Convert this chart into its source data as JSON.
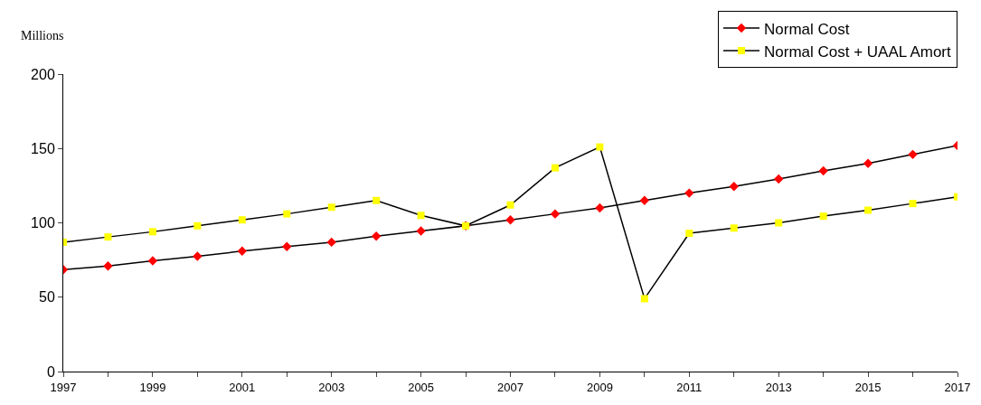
{
  "chart_data": {
    "type": "line",
    "ylabel": "Millions",
    "x": [
      1997,
      1998,
      1999,
      2000,
      2001,
      2002,
      2003,
      2004,
      2005,
      2006,
      2007,
      2008,
      2009,
      2010,
      2011,
      2012,
      2013,
      2014,
      2015,
      2016,
      2017
    ],
    "series": [
      {
        "name": "Normal Cost",
        "color": "#ff0000",
        "marker": "diamond",
        "values": [
          68.5,
          71,
          74.5,
          77.5,
          81,
          84,
          87,
          91,
          94.5,
          98,
          102,
          106,
          110,
          115,
          120,
          124.5,
          129.5,
          135,
          140,
          146,
          152
        ]
      },
      {
        "name": "Normal Cost + UAAL Amort",
        "color": "#ffff00",
        "marker": "square",
        "values": [
          87,
          90.5,
          94,
          98,
          102,
          106,
          110.5,
          115,
          105,
          98,
          112,
          137,
          151,
          49,
          93,
          96.5,
          100,
          104.5,
          108.5,
          113,
          117.5
        ]
      }
    ],
    "xlim": [
      1997,
      2017
    ],
    "xticks": [
      1997,
      1999,
      2001,
      2003,
      2005,
      2007,
      2009,
      2011,
      2013,
      2015,
      2017
    ],
    "ylim": [
      0,
      200
    ],
    "yticks": [
      0,
      50,
      100,
      150,
      200
    ],
    "legend": "top right",
    "line_style": "solid"
  }
}
